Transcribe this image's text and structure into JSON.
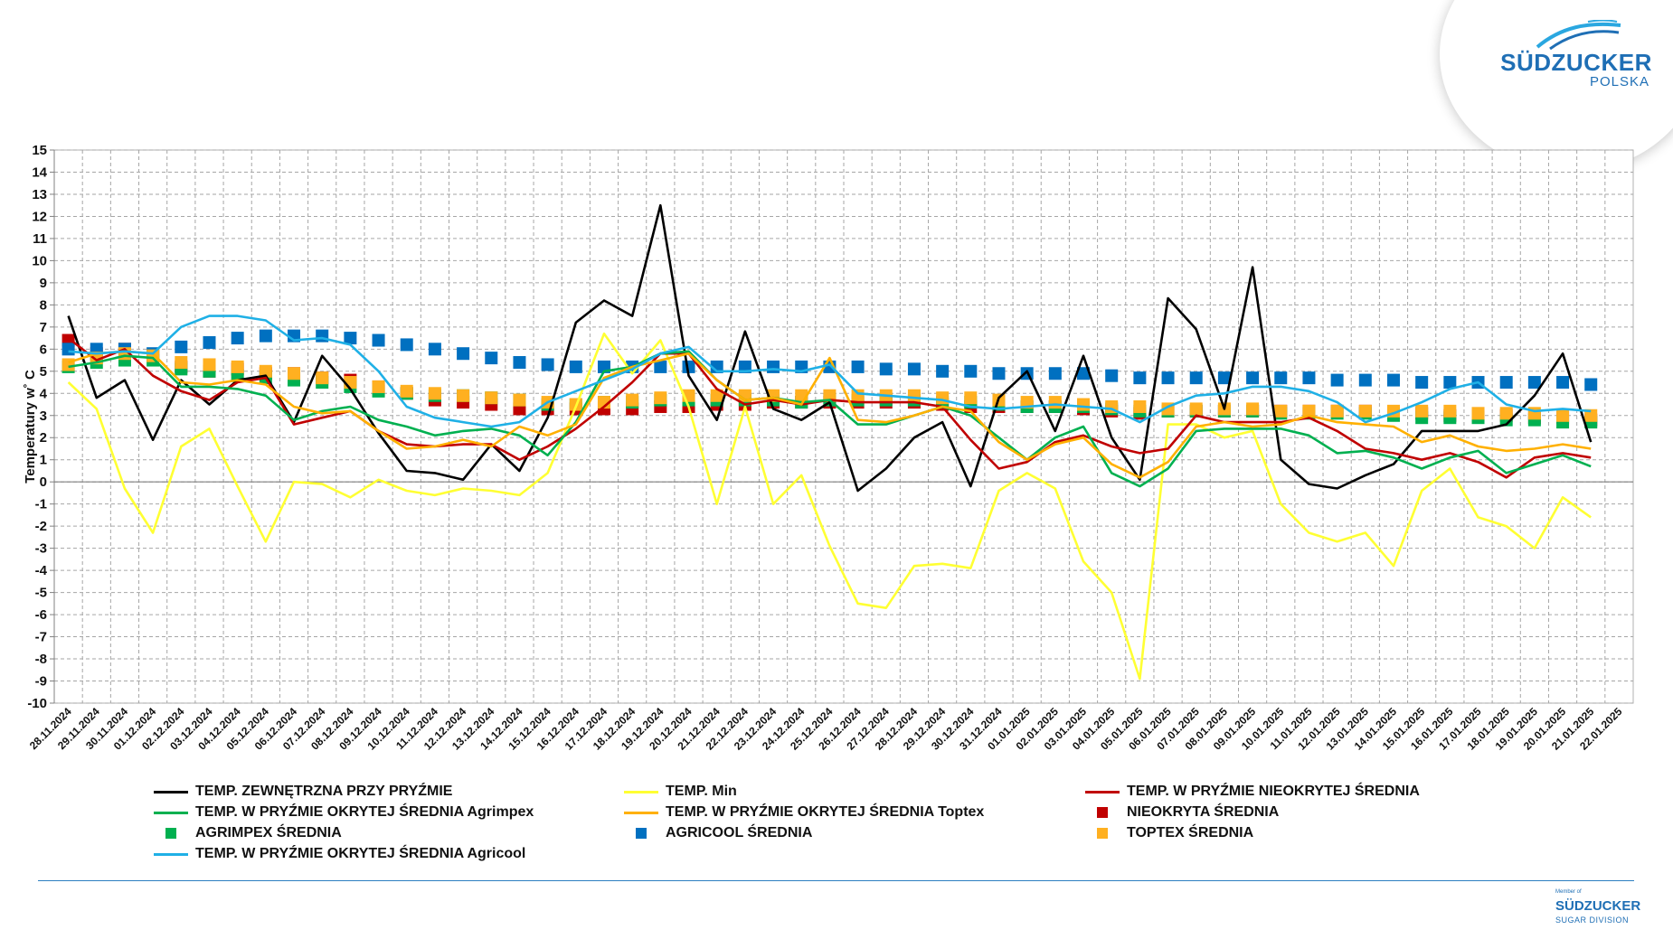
{
  "logo": {
    "brand": "SÜDZUCKER",
    "sub": "POLSKA"
  },
  "footer_logo": {
    "member": "Member of",
    "brand": "SÜDZUCKER",
    "sub": "SUGAR DIVISION"
  },
  "chart_data": {
    "type": "line",
    "ylabel": "Temperatury  w˚ C",
    "xlabel": "",
    "ylim": [
      -10,
      15
    ],
    "grid": true,
    "legend_position": "bottom",
    "categories": [
      "28.11.2024",
      "29.11.2024",
      "30.11.2024",
      "01.12.2024",
      "02.12.2024",
      "03.12.2024",
      "04.12.2024",
      "05.12.2024",
      "06.12.2024",
      "07.12.2024",
      "08.12.2024",
      "09.12.2024",
      "10.12.2024",
      "11.12.2024",
      "12.12.2024",
      "13.12.2024",
      "14.12.2024",
      "15.12.2024",
      "16.12.2024",
      "17.12.2024",
      "18.12.2024",
      "19.12.2024",
      "20.12.2024",
      "21.12.2024",
      "22.12.2024",
      "23.12.2024",
      "24.12.2024",
      "25.12.2024",
      "26.12.2024",
      "27.12.2024",
      "28.12.2024",
      "29.12.2024",
      "30.12.2024",
      "31.12.2024",
      "01.01.2025",
      "02.01.2025",
      "03.01.2025",
      "04.01.2025",
      "05.01.2025",
      "06.01.2025",
      "07.01.2025",
      "08.01.2025",
      "09.01.2025",
      "10.01.2025",
      "11.01.2025",
      "12.01.2025",
      "13.01.2025",
      "14.01.2025",
      "15.01.2025",
      "16.01.2025",
      "17.01.2025",
      "18.01.2025",
      "19.01.2025",
      "20.01.2025",
      "21.01.2025",
      "22.01.2025"
    ],
    "series": [
      {
        "name": "TEMP. ZEWNĘTRZNA PRZY PRYŹMIE",
        "kind": "line",
        "color": "#000000",
        "values": [
          7.5,
          3.8,
          4.6,
          1.9,
          4.6,
          3.5,
          4.6,
          4.8,
          2.7,
          5.7,
          4.2,
          2.2,
          0.5,
          0.4,
          0.1,
          1.7,
          0.5,
          2.9,
          7.2,
          8.2,
          7.5,
          12.5,
          4.8,
          2.8,
          6.8,
          3.3,
          2.8,
          3.6,
          -0.4,
          0.6,
          2.0,
          2.7,
          -0.2,
          3.8,
          5.0,
          2.3,
          5.7,
          2.0,
          0.1,
          8.3,
          6.9,
          3.3,
          9.7,
          1.0,
          -0.1,
          -0.3,
          0.3,
          0.8,
          2.3,
          2.3,
          2.3,
          2.6,
          3.9,
          5.8,
          1.8,
          null
        ]
      },
      {
        "name": "TEMP. Min",
        "kind": "line",
        "color": "#ffff33",
        "values": [
          4.5,
          3.3,
          -0.3,
          -2.3,
          1.6,
          2.4,
          -0.2,
          -2.7,
          0.0,
          -0.1,
          -0.7,
          0.1,
          -0.4,
          -0.6,
          -0.3,
          -0.4,
          -0.6,
          0.4,
          3.4,
          6.7,
          4.9,
          6.4,
          3.4,
          -1.0,
          3.4,
          -1.0,
          0.3,
          -2.9,
          -5.5,
          -5.7,
          -3.8,
          -3.7,
          -3.9,
          -0.4,
          0.4,
          -0.3,
          -3.6,
          -5.0,
          -8.9,
          2.6,
          2.6,
          2.0,
          2.3,
          -1.0,
          -2.3,
          -2.7,
          -2.3,
          -3.8,
          -0.4,
          0.6,
          -1.6,
          -2.0,
          -3.0,
          -0.7,
          -1.6,
          null
        ]
      },
      {
        "name": "TEMP. W PRYŹMIE NIEOKRYTEJ ŚREDNIA",
        "kind": "line",
        "color": "#c00000",
        "values": [
          6.5,
          5.5,
          6.0,
          4.8,
          4.1,
          3.7,
          4.5,
          4.7,
          2.6,
          2.9,
          3.2,
          2.3,
          1.7,
          1.6,
          1.7,
          1.7,
          1.0,
          1.6,
          2.4,
          3.4,
          4.5,
          5.8,
          5.8,
          4.2,
          3.5,
          3.7,
          3.5,
          3.7,
          3.6,
          3.6,
          3.6,
          3.4,
          1.9,
          0.6,
          0.9,
          1.8,
          2.1,
          1.6,
          1.3,
          1.5,
          3.0,
          2.7,
          2.7,
          2.7,
          2.9,
          2.3,
          1.5,
          1.3,
          1.0,
          1.3,
          0.9,
          0.2,
          1.1,
          1.3,
          1.1,
          null
        ]
      },
      {
        "name": "TEMP. W PRYŹMIE OKRYTEJ ŚREDNIA Agrimpex",
        "kind": "line",
        "color": "#00b050",
        "values": [
          5.2,
          5.4,
          5.7,
          5.6,
          4.3,
          4.3,
          4.2,
          3.9,
          2.8,
          3.2,
          3.4,
          2.8,
          2.5,
          2.1,
          2.3,
          2.4,
          2.1,
          1.2,
          2.7,
          5.0,
          5.2,
          5.8,
          5.9,
          4.6,
          3.7,
          3.8,
          3.6,
          3.7,
          2.6,
          2.6,
          3.0,
          3.4,
          3.0,
          2.0,
          1.0,
          2.0,
          2.5,
          0.4,
          -0.2,
          0.6,
          2.3,
          2.4,
          2.4,
          2.4,
          2.1,
          1.3,
          1.4,
          1.1,
          0.6,
          1.1,
          1.4,
          0.4,
          0.8,
          1.2,
          0.7,
          null
        ]
      },
      {
        "name": "NIEOKRYTA ŚREDNIA",
        "kind": "square",
        "color": "#c00000",
        "values": [
          6.4,
          5.8,
          6.0,
          5.7,
          5.2,
          5.0,
          5.1,
          4.9,
          4.9,
          4.7,
          4.6,
          4.3,
          4.0,
          3.7,
          3.6,
          3.5,
          3.3,
          3.3,
          3.3,
          3.3,
          3.3,
          3.4,
          3.4,
          3.5,
          3.5,
          3.6,
          3.6,
          3.6,
          3.6,
          3.6,
          3.6,
          3.5,
          3.4,
          3.4,
          3.4,
          3.4,
          3.3,
          3.2,
          3.1,
          3.2,
          3.2,
          3.2,
          3.2,
          3.2,
          3.2,
          3.2,
          3.2,
          3.1,
          3.1,
          3.0,
          3.0,
          3.0,
          2.9,
          2.9,
          2.8,
          null
        ]
      },
      {
        "name": "TEMP. W PRYŹMIE OKRYTEJ ŚREDNIA Toptex",
        "kind": "line",
        "color": "#ffb000",
        "values": [
          5.4,
          5.8,
          5.9,
          5.8,
          4.5,
          4.4,
          4.6,
          4.4,
          3.4,
          3.1,
          3.2,
          2.3,
          1.5,
          1.6,
          1.9,
          1.6,
          2.5,
          2.1,
          2.6,
          4.7,
          5.2,
          5.5,
          5.8,
          4.6,
          3.7,
          3.8,
          3.5,
          5.6,
          2.8,
          2.7,
          3.0,
          3.4,
          3.2,
          1.8,
          1.0,
          1.7,
          2.0,
          0.8,
          0.2,
          0.9,
          2.5,
          2.7,
          2.5,
          2.6,
          3.0,
          2.7,
          2.6,
          2.5,
          1.8,
          2.1,
          1.6,
          1.4,
          1.5,
          1.7,
          1.5,
          null
        ]
      },
      {
        "name": "AGRIMPEX ŚREDNIA",
        "kind": "square",
        "color": "#00b050",
        "values": [
          5.2,
          5.4,
          5.5,
          5.5,
          5.1,
          5.0,
          4.8,
          4.7,
          4.6,
          4.5,
          4.3,
          4.1,
          4.0,
          3.9,
          3.9,
          3.8,
          3.7,
          3.5,
          3.5,
          3.6,
          3.6,
          3.7,
          3.7,
          3.7,
          3.7,
          3.7,
          3.6,
          3.7,
          3.7,
          3.7,
          3.7,
          3.6,
          3.6,
          3.5,
          3.4,
          3.4,
          3.4,
          3.3,
          3.2,
          3.2,
          3.2,
          3.2,
          3.2,
          3.1,
          3.1,
          3.1,
          3.1,
          3.0,
          2.9,
          2.9,
          2.9,
          2.8,
          2.8,
          2.7,
          2.7,
          null
        ]
      },
      {
        "name": "AGRICOOL ŚREDNIA",
        "kind": "square",
        "color": "#0070c0",
        "values": [
          6.0,
          6.0,
          6.0,
          5.8,
          6.1,
          6.3,
          6.5,
          6.6,
          6.6,
          6.6,
          6.5,
          6.4,
          6.2,
          6.0,
          5.8,
          5.6,
          5.4,
          5.3,
          5.2,
          5.2,
          5.2,
          5.2,
          5.2,
          5.2,
          5.2,
          5.2,
          5.2,
          5.2,
          5.2,
          5.1,
          5.1,
          5.0,
          5.0,
          4.9,
          4.9,
          4.9,
          4.9,
          4.8,
          4.7,
          4.7,
          4.7,
          4.7,
          4.7,
          4.7,
          4.7,
          4.6,
          4.6,
          4.6,
          4.5,
          4.5,
          4.5,
          4.5,
          4.5,
          4.5,
          4.4,
          null
        ]
      },
      {
        "name": "TOPTEX ŚREDNIA",
        "kind": "square",
        "color": "#ffb020",
        "values": [
          5.3,
          5.6,
          5.8,
          5.7,
          5.4,
          5.3,
          5.2,
          5.0,
          4.9,
          4.7,
          4.5,
          4.3,
          4.1,
          4.0,
          3.9,
          3.8,
          3.7,
          3.6,
          3.5,
          3.6,
          3.7,
          3.8,
          3.9,
          3.9,
          3.9,
          3.9,
          3.9,
          3.9,
          3.9,
          3.9,
          3.9,
          3.8,
          3.8,
          3.7,
          3.6,
          3.6,
          3.5,
          3.4,
          3.4,
          3.3,
          3.3,
          3.3,
          3.3,
          3.2,
          3.2,
          3.2,
          3.2,
          3.2,
          3.2,
          3.2,
          3.1,
          3.1,
          3.1,
          3.0,
          3.0,
          null
        ]
      },
      {
        "name": "TEMP. W PRYŹMIE OKRYTEJ ŚREDNIA Agricool",
        "kind": "line",
        "color": "#1fb0e6",
        "values": [
          5.9,
          5.8,
          5.9,
          5.8,
          7.0,
          7.5,
          7.5,
          7.3,
          6.4,
          6.5,
          6.2,
          5.0,
          3.4,
          2.9,
          2.7,
          2.5,
          2.7,
          3.6,
          4.1,
          4.6,
          5.1,
          5.8,
          6.1,
          5.0,
          5.0,
          5.1,
          5.0,
          5.3,
          4.0,
          3.9,
          3.8,
          3.7,
          3.4,
          3.3,
          3.4,
          3.5,
          3.4,
          3.3,
          2.7,
          3.4,
          3.9,
          4.0,
          4.3,
          4.3,
          4.1,
          3.6,
          2.7,
          3.1,
          3.6,
          4.2,
          4.5,
          3.5,
          3.2,
          3.3,
          3.2,
          null
        ]
      }
    ]
  },
  "legend": [
    {
      "label": "TEMP. ZEWNĘTRZNA PRZY PRYŹMIE",
      "kind": "line",
      "color": "#000000",
      "col": 0,
      "row": 0
    },
    {
      "label": "TEMP. Min",
      "kind": "line",
      "color": "#ffff33",
      "col": 1,
      "row": 0
    },
    {
      "label": "TEMP. W PRYŹMIE NIEOKRYTEJ ŚREDNIA",
      "kind": "line",
      "color": "#c00000",
      "col": 2,
      "row": 0
    },
    {
      "label": "TEMP. W PRYŹMIE OKRYTEJ ŚREDNIA Agrimpex",
      "kind": "line",
      "color": "#00b050",
      "col": 0,
      "row": 1
    },
    {
      "label": "TEMP. W PRYŹMIE OKRYTEJ ŚREDNIA Toptex",
      "kind": "line",
      "color": "#ffb000",
      "col": 1,
      "row": 1
    },
    {
      "label": "NIEOKRYTA ŚREDNIA",
      "kind": "square",
      "color": "#c00000",
      "col": 2,
      "row": 1
    },
    {
      "label": "AGRIMPEX ŚREDNIA",
      "kind": "square",
      "color": "#00b050",
      "col": 0,
      "row": 2
    },
    {
      "label": "AGRICOOL ŚREDNIA",
      "kind": "square",
      "color": "#0070c0",
      "col": 1,
      "row": 2
    },
    {
      "label": "TOPTEX ŚREDNIA",
      "kind": "square",
      "color": "#ffb020",
      "col": 2,
      "row": 2
    },
    {
      "label": "TEMP. W PRYŹMIE OKRYTEJ ŚREDNIA Agricool",
      "kind": "line",
      "color": "#1fb0e6",
      "col": 0,
      "row": 3
    }
  ]
}
